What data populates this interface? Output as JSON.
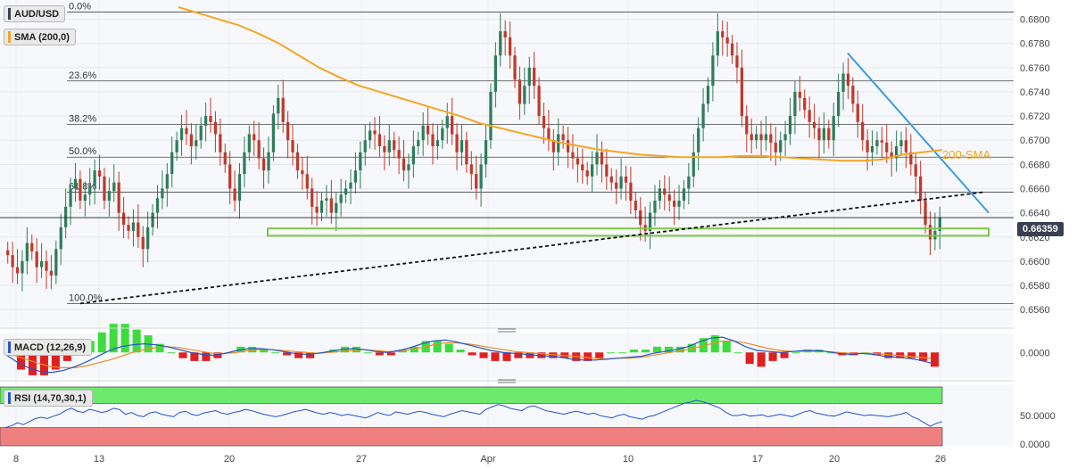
{
  "instrument": "AUD/USD",
  "indicators": {
    "sma_tag": "SMA (200,0)",
    "sma_color": "#f5a623",
    "sma_annotation": "200-SMA",
    "macd_tag": "MACD (12,26,9)",
    "rsi_tag": "RSI (14,70,30,1)"
  },
  "current_price": "0.66359",
  "colors": {
    "up": "#2e7d5b",
    "down": "#c0392b",
    "trendline_blue": "#3b9be0",
    "support_zone": "#7ac943",
    "rsi_overbought": "#6dea6d",
    "rsi_oversold": "#f08080",
    "macd_line": "#2255cc",
    "signal_line": "#f08a24"
  },
  "chart_data": [
    {
      "type": "candlestick",
      "name": "AUD/USD",
      "yticks": [
        "0.6800",
        "0.6780",
        "0.6760",
        "0.6740",
        "0.6720",
        "0.6700",
        "0.6680",
        "0.6660",
        "0.6640",
        "0.6620",
        "0.6600",
        "0.6580",
        "0.6560"
      ],
      "ylim": [
        0.6552,
        0.681
      ],
      "xticks": [
        "8",
        "13",
        "20",
        "27",
        "Apr",
        "10",
        "17",
        "20",
        "26"
      ],
      "fibonacci": [
        {
          "label": "0.0%",
          "value": 0.6806
        },
        {
          "label": "23.6%",
          "value": 0.6749
        },
        {
          "label": "38.2%",
          "value": 0.6713
        },
        {
          "label": "50.0%",
          "value": 0.6686
        },
        {
          "label": "61.8%",
          "value": 0.6657
        },
        {
          "label": "100.0%",
          "value": 0.6565
        }
      ],
      "support_zone": [
        0.6621,
        0.6627
      ],
      "price_line": 0.6636,
      "sma200_annotation": "200-SMA",
      "closes": [
        0.6605,
        0.6595,
        0.659,
        0.66,
        0.6615,
        0.6608,
        0.6595,
        0.66,
        0.6592,
        0.6588,
        0.661,
        0.6628,
        0.6645,
        0.666,
        0.6668,
        0.665,
        0.6655,
        0.6662,
        0.6675,
        0.667,
        0.665,
        0.6658,
        0.6665,
        0.664,
        0.663,
        0.6625,
        0.6632,
        0.662,
        0.661,
        0.6628,
        0.664,
        0.6652,
        0.666,
        0.6672,
        0.669,
        0.67,
        0.671,
        0.6705,
        0.6695,
        0.67,
        0.6712,
        0.672,
        0.6715,
        0.6705,
        0.669,
        0.668,
        0.666,
        0.665,
        0.6672,
        0.669,
        0.6705,
        0.67,
        0.6685,
        0.6675,
        0.669,
        0.6722,
        0.6735,
        0.6715,
        0.67,
        0.669,
        0.6675,
        0.6672,
        0.666,
        0.6645,
        0.664,
        0.665,
        0.6652,
        0.664,
        0.6648,
        0.6655,
        0.666,
        0.6665,
        0.6675,
        0.669,
        0.67,
        0.6708,
        0.6705,
        0.6695,
        0.669,
        0.67,
        0.6692,
        0.6685,
        0.6675,
        0.668,
        0.6695,
        0.67,
        0.6712,
        0.6705,
        0.6695,
        0.67,
        0.671,
        0.672,
        0.6705,
        0.669,
        0.67,
        0.668,
        0.6672,
        0.666,
        0.668,
        0.67,
        0.674,
        0.677,
        0.679,
        0.6785,
        0.677,
        0.675,
        0.673,
        0.6745,
        0.676,
        0.6745,
        0.672,
        0.671,
        0.67,
        0.669,
        0.6705,
        0.67,
        0.669,
        0.6685,
        0.668,
        0.6675,
        0.667,
        0.668,
        0.669,
        0.668,
        0.667,
        0.6665,
        0.666,
        0.667,
        0.6665,
        0.665,
        0.6642,
        0.663,
        0.6625,
        0.664,
        0.665,
        0.666,
        0.6655,
        0.665,
        0.6645,
        0.665,
        0.666,
        0.667,
        0.669,
        0.671,
        0.673,
        0.6745,
        0.677,
        0.679,
        0.6785,
        0.678,
        0.677,
        0.676,
        0.672,
        0.6705,
        0.67,
        0.6705,
        0.67,
        0.6705,
        0.6698,
        0.669,
        0.67,
        0.6705,
        0.672,
        0.674,
        0.6735,
        0.6725,
        0.6715,
        0.671,
        0.67,
        0.671,
        0.67,
        0.672,
        0.674,
        0.6755,
        0.6745,
        0.673,
        0.6715,
        0.67,
        0.669,
        0.6695,
        0.67,
        0.6698,
        0.669,
        0.6685,
        0.6695,
        0.67,
        0.669,
        0.668,
        0.667,
        0.665,
        0.663,
        0.6618,
        0.6625,
        0.6636
      ],
      "sma200": [
        0.681,
        0.6805,
        0.68,
        0.6795,
        0.6788,
        0.678,
        0.677,
        0.676,
        0.6752,
        0.6745,
        0.674,
        0.6735,
        0.673,
        0.6725,
        0.672,
        0.6714,
        0.671,
        0.6706,
        0.6702,
        0.6698,
        0.6695,
        0.6692,
        0.669,
        0.6688,
        0.6687,
        0.6686,
        0.6686,
        0.6686,
        0.6687,
        0.6687,
        0.6686,
        0.6685,
        0.6684,
        0.6683,
        0.6683,
        0.6684,
        0.6688,
        0.669,
        0.6692
      ],
      "ascending_trendline": [
        [
          0.6565,
          0
        ],
        [
          0.6657,
          1
        ]
      ],
      "descending_trendline": [
        [
          0.6772,
          0
        ],
        [
          0.664,
          1
        ]
      ]
    },
    {
      "type": "area",
      "name": "MACD (12,26,9)",
      "yticks": [
        "0.0000"
      ],
      "macd": [
        -0.0002,
        -0.001,
        -0.0016,
        -0.002,
        -0.0021,
        -0.0019,
        -0.0015,
        -0.001,
        -0.0004,
        0.0002,
        0.0006,
        0.0008,
        0.0009,
        0.0008,
        0.0006,
        0.0003,
        0.0,
        -0.0002,
        -0.0003,
        -0.0001,
        0.0002,
        0.0004,
        0.0004,
        0.0003,
        0.0001,
        -0.0001,
        -0.0002,
        -0.0001,
        0.0001,
        0.0003,
        0.0004,
        0.0003,
        0.0001,
        0.0,
        0.0002,
        0.0005,
        0.0009,
        0.0012,
        0.0013,
        0.0011,
        0.0008,
        0.0005,
        0.0002,
        0.0,
        -0.0001,
        -0.0002,
        -0.0003,
        -0.0004,
        -0.0005,
        -0.0007,
        -0.0008,
        -0.0008,
        -0.0007,
        -0.0006,
        -0.0005,
        -0.0004,
        -0.0001,
        0.0001,
        0.0003,
        0.0006,
        0.0011,
        0.0015,
        0.0016,
        0.0012,
        0.0006,
        0.0002,
        0.0001,
        0.0,
        0.0001,
        0.0002,
        0.0002,
        0.0001,
        -0.0001,
        -0.0002,
        -0.0001,
        -0.0002,
        -0.0004,
        -0.0005,
        -0.0006,
        -0.0008,
        -0.0011
      ],
      "signal": [
        -0.0001,
        -0.0004,
        -0.0008,
        -0.0012,
        -0.0015,
        -0.0016,
        -0.0016,
        -0.0014,
        -0.0011,
        -0.0008,
        -0.0004,
        0.0,
        0.0003,
        0.0005,
        0.0006,
        0.0005,
        0.0003,
        0.0001,
        -0.0001,
        -0.0001,
        0.0,
        0.0002,
        0.0003,
        0.0003,
        0.0002,
        0.0001,
        0.0,
        -0.0001,
        0.0,
        0.0001,
        0.0002,
        0.0003,
        0.0002,
        0.0001,
        0.0001,
        0.0003,
        0.0005,
        0.0008,
        0.001,
        0.001,
        0.0009,
        0.0007,
        0.0005,
        0.0003,
        0.0001,
        0.0,
        -0.0001,
        -0.0002,
        -0.0003,
        -0.0004,
        -0.0005,
        -0.0006,
        -0.0007,
        -0.0006,
        -0.0006,
        -0.0005,
        -0.0003,
        -0.0001,
        0.0001,
        0.0003,
        0.0006,
        0.0009,
        0.0012,
        0.0012,
        0.001,
        0.0007,
        0.0004,
        0.0002,
        0.0001,
        0.0001,
        0.0001,
        0.0001,
        0.0,
        -0.0001,
        -0.0001,
        -0.0001,
        -0.0002,
        -0.0003,
        -0.0004,
        -0.0005,
        -0.0006
      ],
      "ylim": [
        -0.0025,
        0.0018
      ]
    },
    {
      "type": "line",
      "name": "RSI (14,70,30,1)",
      "yticks": [
        "50.0000",
        "0.0000"
      ],
      "ylim": [
        0,
        100
      ],
      "overbought": 70,
      "oversold": 30,
      "values": [
        30,
        33,
        38,
        35,
        40,
        45,
        47,
        45,
        49,
        52,
        58,
        62,
        57,
        55,
        60,
        58,
        55,
        57,
        62,
        60,
        52,
        55,
        50,
        48,
        54,
        56,
        52,
        50,
        48,
        55,
        57,
        52,
        50,
        54,
        56,
        58,
        54,
        52,
        55,
        57,
        60,
        58,
        55,
        52,
        50,
        48,
        50,
        53,
        56,
        58,
        60,
        57,
        54,
        52,
        55,
        53,
        50,
        52,
        50,
        48,
        46,
        50,
        55,
        52,
        50,
        56,
        54,
        52,
        55,
        57,
        55,
        52,
        50,
        48,
        52,
        55,
        58,
        56,
        54,
        52,
        60,
        64,
        68,
        66,
        62,
        60,
        58,
        64,
        66,
        62,
        58,
        56,
        54,
        52,
        55,
        57,
        55,
        52,
        54,
        50,
        48,
        46,
        50,
        52,
        48,
        46,
        44,
        48,
        50,
        54,
        58,
        62,
        66,
        70,
        72,
        75,
        73,
        70,
        66,
        62,
        55,
        50,
        50,
        52,
        49,
        50,
        51,
        48,
        50,
        52,
        50,
        48,
        52,
        56,
        58,
        54,
        52,
        50,
        49,
        52,
        56,
        54,
        52,
        50,
        51,
        50,
        49,
        48,
        50,
        52,
        55,
        48,
        44,
        38,
        32,
        37,
        40
      ]
    }
  ]
}
